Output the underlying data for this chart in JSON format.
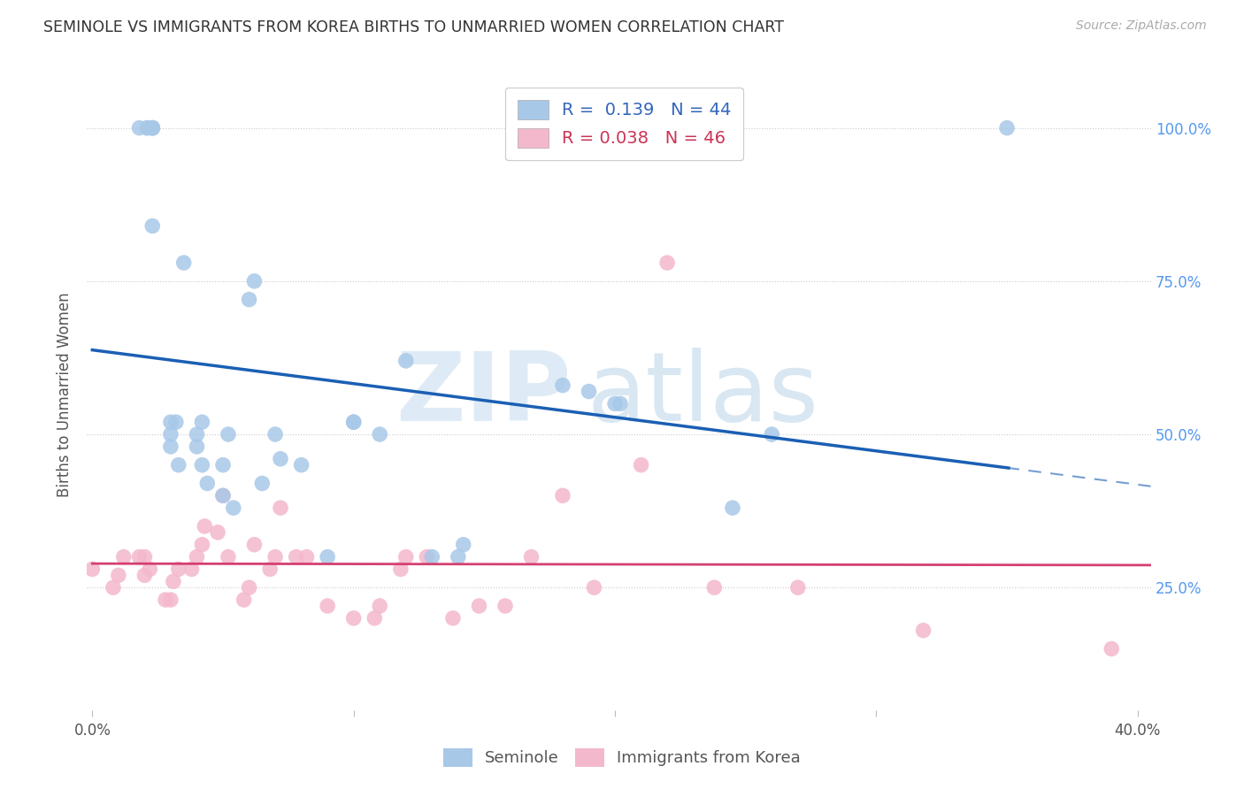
{
  "title": "SEMINOLE VS IMMIGRANTS FROM KOREA BIRTHS TO UNMARRIED WOMEN CORRELATION CHART",
  "source": "Source: ZipAtlas.com",
  "ylabel": "Births to Unmarried Women",
  "ytick_labels": [
    "25.0%",
    "50.0%",
    "75.0%",
    "100.0%"
  ],
  "ytick_values": [
    0.25,
    0.5,
    0.75,
    1.0
  ],
  "xlim": [
    -0.002,
    0.405
  ],
  "ylim": [
    0.05,
    1.08
  ],
  "legend_blue_label": "R =  0.139   N = 44",
  "legend_pink_label": "R = 0.038   N = 46",
  "legend_bottom_blue": "Seminole",
  "legend_bottom_pink": "Immigrants from Korea",
  "blue_color": "#a8c8e8",
  "pink_color": "#f4b8cc",
  "blue_line_color": "#1a5fb4",
  "pink_line_color": "#d44070",
  "seminole_x": [
    0.018,
    0.021,
    0.021,
    0.023,
    0.023,
    0.023,
    0.023,
    0.023,
    0.03,
    0.03,
    0.03,
    0.032,
    0.033,
    0.035,
    0.04,
    0.04,
    0.042,
    0.042,
    0.044,
    0.05,
    0.05,
    0.052,
    0.054,
    0.06,
    0.062,
    0.065,
    0.07,
    0.072,
    0.08,
    0.09,
    0.1,
    0.1,
    0.11,
    0.12,
    0.13,
    0.14,
    0.142,
    0.18,
    0.19,
    0.2,
    0.202,
    0.245,
    0.26,
    0.35
  ],
  "seminole_y": [
    1.0,
    1.0,
    1.0,
    1.0,
    1.0,
    1.0,
    1.0,
    0.84,
    0.52,
    0.5,
    0.48,
    0.52,
    0.45,
    0.78,
    0.5,
    0.48,
    0.52,
    0.45,
    0.42,
    0.45,
    0.4,
    0.5,
    0.38,
    0.72,
    0.75,
    0.42,
    0.5,
    0.46,
    0.45,
    0.3,
    0.52,
    0.52,
    0.5,
    0.62,
    0.3,
    0.3,
    0.32,
    0.58,
    0.57,
    0.55,
    0.55,
    0.38,
    0.5,
    1.0
  ],
  "korea_x": [
    0.0,
    0.008,
    0.01,
    0.012,
    0.018,
    0.02,
    0.02,
    0.022,
    0.028,
    0.03,
    0.031,
    0.033,
    0.038,
    0.04,
    0.042,
    0.043,
    0.048,
    0.05,
    0.052,
    0.058,
    0.06,
    0.062,
    0.068,
    0.07,
    0.072,
    0.078,
    0.082,
    0.09,
    0.1,
    0.108,
    0.11,
    0.118,
    0.12,
    0.128,
    0.138,
    0.148,
    0.158,
    0.168,
    0.18,
    0.192,
    0.21,
    0.22,
    0.238,
    0.27,
    0.318,
    0.39
  ],
  "korea_y": [
    0.28,
    0.25,
    0.27,
    0.3,
    0.3,
    0.27,
    0.3,
    0.28,
    0.23,
    0.23,
    0.26,
    0.28,
    0.28,
    0.3,
    0.32,
    0.35,
    0.34,
    0.4,
    0.3,
    0.23,
    0.25,
    0.32,
    0.28,
    0.3,
    0.38,
    0.3,
    0.3,
    0.22,
    0.2,
    0.2,
    0.22,
    0.28,
    0.3,
    0.3,
    0.2,
    0.22,
    0.22,
    0.3,
    0.4,
    0.25,
    0.45,
    0.78,
    0.25,
    0.25,
    0.18,
    0.15
  ]
}
